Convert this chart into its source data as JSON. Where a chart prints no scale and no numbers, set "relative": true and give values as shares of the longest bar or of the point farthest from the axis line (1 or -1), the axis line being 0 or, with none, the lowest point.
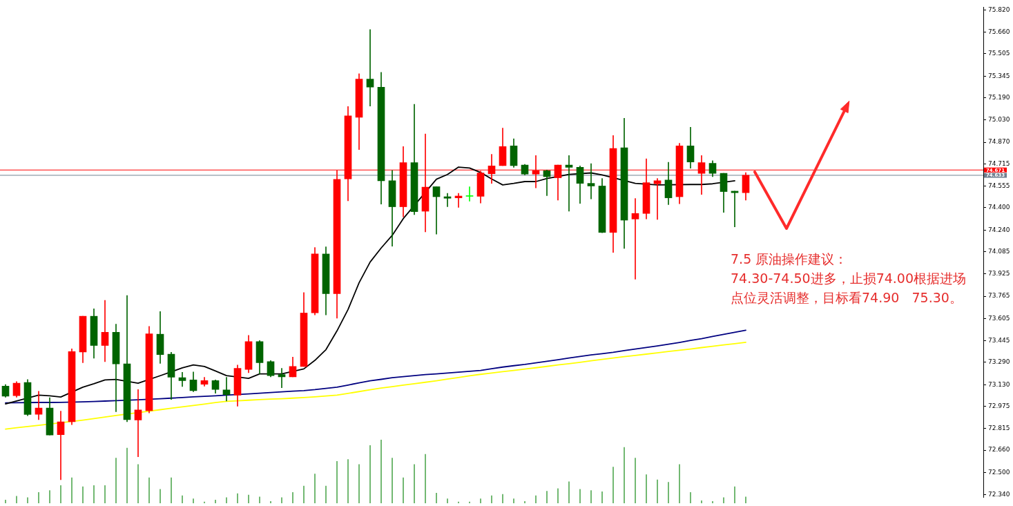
{
  "chart_data": [
    {
      "type": "candlestick",
      "categories": [
        null,
        null,
        null,
        null,
        null,
        null,
        null,
        null,
        null,
        null,
        null,
        null,
        null,
        null,
        null,
        null,
        null,
        null,
        null,
        null,
        null,
        null,
        null,
        null,
        null,
        null,
        null,
        null,
        null,
        null,
        null,
        null,
        null,
        null,
        null,
        null,
        null,
        null,
        null,
        null,
        null,
        null,
        null,
        null,
        null,
        null,
        null,
        null,
        null,
        null,
        null,
        null,
        null,
        null,
        null,
        null,
        null,
        null,
        null,
        null,
        null,
        null,
        null,
        null,
        null,
        null,
        null,
        null
      ],
      "ohlc": [
        [
          73.119,
          73.13,
          73.04,
          73.047
        ],
        [
          73.051,
          73.151,
          73.04,
          73.14
        ],
        [
          73.145,
          73.167,
          72.907,
          72.916
        ],
        [
          72.917,
          73.082,
          72.879,
          72.962
        ],
        [
          72.962,
          73.036,
          72.768,
          72.768
        ],
        [
          72.771,
          72.94,
          72.447,
          72.863
        ],
        [
          72.863,
          73.387,
          72.843,
          73.367
        ],
        [
          73.364,
          73.621,
          73.287,
          73.621
        ],
        [
          73.621,
          73.674,
          73.319,
          73.411
        ],
        [
          73.411,
          73.735,
          73.295,
          73.506
        ],
        [
          73.506,
          73.564,
          72.935,
          73.279
        ],
        [
          73.279,
          73.77,
          72.863,
          72.879
        ],
        [
          72.876,
          73.095,
          72.612,
          72.948
        ],
        [
          72.943,
          73.548,
          72.927,
          73.495
        ],
        [
          73.492,
          73.655,
          73.282,
          73.346
        ],
        [
          73.348,
          73.362,
          73.023,
          73.183
        ],
        [
          73.18,
          73.218,
          73.116,
          73.159
        ],
        [
          73.164,
          73.221,
          73.079,
          73.087
        ],
        [
          73.132,
          73.183,
          73.119,
          73.159
        ],
        [
          73.159,
          73.164,
          73.068,
          73.095
        ],
        [
          73.092,
          73.183,
          73.012,
          73.058
        ],
        [
          73.055,
          73.271,
          72.975,
          73.247
        ],
        [
          73.239,
          73.484,
          73.215,
          73.439
        ],
        [
          73.439,
          73.447,
          73.207,
          73.287
        ],
        [
          73.295,
          73.303,
          73.186,
          73.195
        ],
        [
          73.202,
          73.247,
          73.108,
          73.186
        ],
        [
          73.186,
          73.327,
          73.186,
          73.26
        ],
        [
          73.26,
          73.791,
          73.26,
          73.644
        ],
        [
          73.645,
          74.114,
          73.63,
          74.068
        ],
        [
          74.068,
          74.119,
          73.631,
          73.783
        ],
        [
          73.783,
          74.668,
          73.607,
          74.604
        ],
        [
          74.607,
          75.127,
          74.45,
          75.06
        ],
        [
          75.049,
          75.362,
          74.818,
          75.324
        ],
        [
          75.324,
          75.679,
          75.13,
          75.266
        ],
        [
          75.266,
          75.372,
          74.426,
          74.594
        ],
        [
          74.594,
          74.668,
          74.124,
          74.407
        ],
        [
          74.407,
          74.839,
          74.335,
          74.724
        ],
        [
          74.724,
          75.143,
          74.351,
          74.372
        ],
        [
          74.375,
          74.93,
          74.226,
          74.548
        ],
        [
          74.551,
          74.551,
          74.21,
          74.479
        ],
        [
          74.479,
          74.503,
          74.407,
          74.468
        ],
        [
          74.471,
          74.503,
          74.402,
          74.484
        ],
        [
          74.482,
          74.551,
          74.447,
          74.482
        ],
        [
          74.482,
          74.663,
          74.434,
          74.65
        ],
        [
          74.644,
          74.783,
          74.575,
          74.7
        ],
        [
          74.703,
          74.972,
          74.703,
          74.839
        ],
        [
          74.844,
          74.895,
          74.69,
          74.703
        ],
        [
          74.706,
          74.711,
          74.636,
          74.642
        ],
        [
          74.642,
          74.775,
          74.543,
          74.666
        ],
        [
          74.666,
          74.671,
          74.487,
          74.623
        ],
        [
          74.615,
          74.706,
          74.455,
          74.706
        ],
        [
          74.706,
          74.775,
          74.375,
          74.69
        ],
        [
          74.69,
          74.7,
          74.431,
          74.575
        ],
        [
          74.575,
          74.716,
          74.463,
          74.556
        ],
        [
          74.556,
          74.61,
          74.22,
          74.223
        ],
        [
          74.223,
          74.919,
          74.079,
          74.826
        ],
        [
          74.831,
          75.042,
          74.108,
          74.311
        ],
        [
          74.319,
          74.466,
          73.887,
          74.359
        ],
        [
          74.359,
          74.751,
          74.319,
          74.58
        ],
        [
          74.572,
          74.61,
          74.316,
          74.594
        ],
        [
          74.599,
          74.727,
          74.423,
          74.471
        ],
        [
          74.479,
          74.863,
          74.428,
          74.844
        ],
        [
          74.844,
          74.978,
          74.684,
          74.729
        ],
        [
          74.647,
          74.775,
          74.495,
          74.724
        ],
        [
          74.719,
          74.738,
          74.623,
          74.647
        ],
        [
          74.647,
          74.647,
          74.367,
          74.516
        ],
        [
          74.519,
          74.519,
          74.263,
          74.508
        ],
        [
          74.508,
          74.652,
          74.455,
          74.633
        ]
      ],
      "colors": [
        "#006400",
        "#ff0000",
        "#006400",
        "#ff0000",
        "#006400",
        "#ff0000",
        "#ff0000",
        "#ff0000",
        "#006400",
        "#ff0000",
        "#006400",
        "#006400",
        "#ff0000",
        "#ff0000",
        "#006400",
        "#006400",
        "#006400",
        "#006400",
        "#ff0000",
        "#006400",
        "#006400",
        "#ff0000",
        "#ff0000",
        "#006400",
        "#006400",
        "#006400",
        "#ff0000",
        "#ff0000",
        "#ff0000",
        "#006400",
        "#ff0000",
        "#ff0000",
        "#ff0000",
        "#006400",
        "#006400",
        "#006400",
        "#ff0000",
        "#006400",
        "#ff0000",
        "#006400",
        "#006400",
        "#ff0000",
        "#00ff00",
        "#ff0000",
        "#ff0000",
        "#ff0000",
        "#006400",
        "#006400",
        "#ff0000",
        "#006400",
        "#ff0000",
        "#006400",
        "#006400",
        "#006400",
        "#006400",
        "#ff0000",
        "#006400",
        "#ff0000",
        "#ff0000",
        "#ff0000",
        "#006400",
        "#ff0000",
        "#006400",
        "#ff0000",
        "#006400",
        "#006400",
        "#006400",
        "#ff0000"
      ],
      "series": [
        {
          "type": "line",
          "color": "#000000",
          "values": [
            72.992,
            73.012,
            null,
            73.055,
            73.05,
            73.041,
            null,
            73.112,
            73.136,
            73.164,
            73.167,
            null,
            73.14,
            null,
            73.194,
            null,
            73.25,
            73.271,
            73.26,
            73.228,
            73.195,
            null,
            73.175,
            73.207,
            null,
            73.207,
            null,
            73.243,
            73.304,
            73.381,
            73.516,
            73.669,
            73.861,
            74.01,
            74.111,
            74.202,
            74.322,
            null,
            null,
            74.605,
            74.639,
            74.692,
            74.685,
            74.653,
            74.607,
            74.564,
            74.575,
            74.588,
            74.588,
            74.61,
            null,
            74.639,
            null,
            74.65,
            74.636,
            null,
            null,
            74.575,
            null,
            74.564,
            null,
            null,
            74.567,
            74.567,
            74.572,
            null,
            74.594,
            null
          ]
        },
        {
          "type": "line",
          "color": "#000080",
          "values": [
            72.999,
            73,
            null,
            73.002,
            73.002,
            73.003,
            null,
            73.006,
            73.009,
            73.012,
            73.015,
            null,
            73.021,
            null,
            73.029,
            73.033,
            73.037,
            73.042,
            73.046,
            73.05,
            73.055,
            null,
            73.063,
            73.068,
            73.073,
            73.078,
            73.083,
            73.087,
            73.094,
            73.103,
            73.112,
            73.127,
            73.143,
            73.157,
            73.168,
            73.18,
            73.187,
            73.195,
            73.202,
            73.207,
            73.213,
            73.219,
            73.226,
            73.232,
            73.244,
            73.256,
            73.266,
            73.275,
            73.286,
            73.298,
            73.309,
            73.321,
            73.332,
            73.343,
            73.352,
            73.362,
            73.374,
            73.385,
            73.397,
            73.408,
            73.42,
            73.433,
            73.447,
            73.46,
            73.476,
            73.491,
            73.506,
            73.52
          ]
        },
        {
          "type": "line",
          "color": "#ffff00",
          "values": [
            72.811,
            72.82,
            72.829,
            72.838,
            null,
            null,
            null,
            72.875,
            72.886,
            72.897,
            72.908,
            null,
            null,
            72.939,
            72.95,
            72.96,
            72.97,
            72.98,
            72.99,
            73.001,
            73.01,
            73.014,
            73.018,
            73.022,
            73.026,
            73.029,
            73.033,
            73.037,
            73.042,
            73.048,
            73.055,
            73.067,
            73.08,
            73.093,
            73.105,
            73.115,
            73.126,
            73.136,
            73.147,
            73.158,
            73.17,
            73.181,
            73.193,
            73.204,
            73.213,
            73.223,
            73.232,
            73.242,
            73.251,
            73.261,
            73.271,
            73.28,
            73.29,
            73.301,
            73.311,
            73.321,
            73.331,
            73.34,
            73.349,
            73.358,
            73.368,
            73.377,
            73.386,
            73.396,
            73.405,
            73.415,
            73.424,
            73.434
          ]
        }
      ],
      "ylim": [
        72.32,
        75.84
      ],
      "yticks": [
        {
          "value": 75.82,
          "label": "75.820"
        },
        {
          "value": 75.66,
          "label": "75.660"
        },
        75.505,
        75.345,
        {
          "value": 75.19,
          "label": "75.190"
        },
        {
          "value": 75.03,
          "label": "75.030"
        },
        {
          "value": 74.87,
          "label": "74.870"
        },
        74.715,
        74.555,
        {
          "value": 74.4,
          "label": "74.400"
        },
        {
          "value": 74.24,
          "label": "74.240"
        },
        74.085,
        73.925,
        73.765,
        73.605,
        73.445,
        {
          "value": 73.29,
          "label": "73.290"
        },
        {
          "value": 73.13,
          "label": "73.130"
        },
        72.975,
        72.815,
        {
          "value": 72.66,
          "label": "72.660"
        },
        {
          "value": 72.5,
          "label": "72.500"
        },
        {
          "value": 72.34,
          "label": "72.340"
        }
      ],
      "ref_lines": [
        {
          "axis": "y",
          "value": 74.671,
          "label": "74.671",
          "color": "#ff0000"
        },
        {
          "axis": "y",
          "value": 74.633,
          "label": "74.633",
          "color": "#708090"
        }
      ],
      "annotations": [
        "7.5 原油操作建议：",
        "74.30-74.50进多，止损74.00根据进场",
        "点位灵活调整，目标看74.90   75.30。"
      ],
      "marker": "none",
      "tick_labels": "y"
    },
    {
      "type": "bar",
      "relative": true,
      "color": "#55aa55",
      "tick_labels": false,
      "categories": [
        null,
        null,
        null,
        null,
        null,
        null,
        null,
        null,
        null,
        null,
        null,
        null,
        null,
        null,
        null,
        null,
        null,
        null,
        null,
        null,
        null,
        null,
        null,
        null,
        null,
        null,
        null,
        null,
        null,
        null,
        null,
        null,
        null,
        null,
        null,
        null,
        null,
        null,
        null,
        null,
        null,
        null,
        null,
        null,
        null,
        null,
        null,
        null,
        null,
        null,
        null,
        null,
        null,
        null,
        null,
        null,
        null,
        null,
        null,
        null,
        null,
        null,
        null,
        null,
        null,
        null,
        null,
        null
      ],
      "values": [
        0.05,
        0.11,
        0.09,
        0.17,
        0.2,
        0.28,
        0.4,
        0.26,
        0.28,
        0.28,
        0.71,
        0.87,
        0.61,
        0.4,
        0.22,
        0.4,
        0.12,
        0.07,
        0.02,
        0.05,
        0.09,
        0.15,
        0.13,
        0.1,
        0.03,
        0.09,
        0.17,
        0.27,
        0.46,
        0.27,
        0.66,
        0.69,
        0.61,
        0.91,
        1,
        0.71,
        0.4,
        0.61,
        0.77,
        0.16,
        0.07,
        0.02,
        0.02,
        0.07,
        0.12,
        0.14,
        0.07,
        0.03,
        0.12,
        0.19,
        0.23,
        0.34,
        0.22,
        0.2,
        0.18,
        0.57,
        0.88,
        0.71,
        0.45,
        0.37,
        0.33,
        0.61,
        0.17,
        0.04,
        0.03,
        0.09,
        0.26,
        0.1
      ]
    }
  ]
}
